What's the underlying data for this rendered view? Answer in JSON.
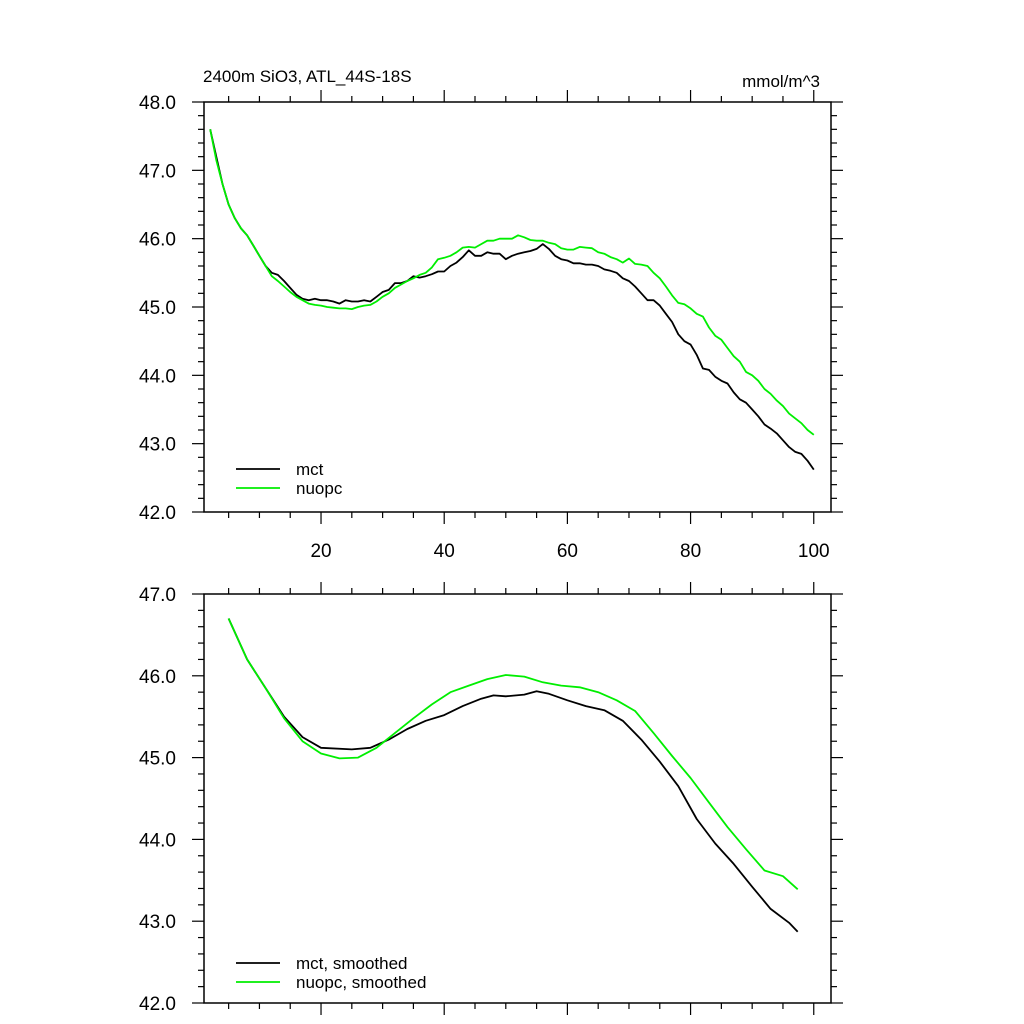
{
  "colors": {
    "mct": "#000000",
    "nuopc": "#00ee00"
  },
  "chart_data": [
    {
      "type": "line",
      "title_left": "2400m SiO3, ATL_44S-18S",
      "title_right": "mmol/m^3",
      "xlim": [
        1,
        102.8
      ],
      "ylim": [
        42.0,
        48.0
      ],
      "xticks": [
        20,
        40,
        60,
        80,
        100
      ],
      "xtick_labels": [
        "20",
        "40",
        "60",
        "80",
        "100"
      ],
      "yticks": [
        42,
        43,
        44,
        45,
        46,
        47,
        48
      ],
      "ytick_labels": [
        "42.0",
        "43.0",
        "44.0",
        "45.0",
        "46.0",
        "47.0",
        "48.0"
      ],
      "legend": "bottom-left",
      "x": [
        2,
        3,
        4,
        5,
        6,
        7,
        8,
        9,
        10,
        11,
        12,
        13,
        14,
        15,
        16,
        17,
        18,
        19,
        20,
        21,
        22,
        23,
        24,
        25,
        26,
        27,
        28,
        29,
        30,
        31,
        32,
        33,
        34,
        35,
        36,
        37,
        38,
        39,
        40,
        41,
        42,
        43,
        44,
        45,
        46,
        47,
        48,
        49,
        50,
        51,
        52,
        53,
        54,
        55,
        56,
        57,
        58,
        59,
        60,
        61,
        62,
        63,
        64,
        65,
        66,
        67,
        68,
        69,
        70,
        71,
        72,
        73,
        74,
        75,
        76,
        77,
        78,
        79,
        80,
        81,
        82,
        83,
        84,
        85,
        86,
        87,
        88,
        89,
        90,
        91,
        92,
        93,
        94,
        95,
        96,
        97,
        98,
        99,
        100
      ],
      "series": [
        {
          "name": "mct",
          "values": [
            47.6,
            47.2,
            46.8,
            46.5,
            46.3,
            46.15,
            46.05,
            45.9,
            45.75,
            45.6,
            45.5,
            45.47,
            45.38,
            45.28,
            45.18,
            45.12,
            45.1,
            45.12,
            45.1,
            45.1,
            45.08,
            45.05,
            45.1,
            45.08,
            45.08,
            45.1,
            45.08,
            45.15,
            45.22,
            45.25,
            45.35,
            45.35,
            45.38,
            45.45,
            45.43,
            45.45,
            45.48,
            45.52,
            45.52,
            45.6,
            45.65,
            45.73,
            45.83,
            45.75,
            45.75,
            45.8,
            45.78,
            45.78,
            45.7,
            45.75,
            45.78,
            45.8,
            45.82,
            45.85,
            45.92,
            45.85,
            45.75,
            45.7,
            45.68,
            45.64,
            45.64,
            45.62,
            45.62,
            45.6,
            45.55,
            45.53,
            45.5,
            45.42,
            45.38,
            45.3,
            45.2,
            45.1,
            45.1,
            45.02,
            44.9,
            44.78,
            44.6,
            44.5,
            44.45,
            44.3,
            44.1,
            44.08,
            43.98,
            43.92,
            43.88,
            43.75,
            43.65,
            43.6,
            43.5,
            43.4,
            43.28,
            43.22,
            43.15,
            43.05,
            42.95,
            42.88,
            42.85,
            42.75,
            42.62
          ]
        },
        {
          "name": "nuopc",
          "values": [
            47.6,
            47.15,
            46.8,
            46.5,
            46.3,
            46.15,
            46.05,
            45.9,
            45.75,
            45.6,
            45.45,
            45.38,
            45.3,
            45.22,
            45.15,
            45.1,
            45.05,
            45.03,
            45.02,
            45.0,
            44.99,
            44.98,
            44.98,
            44.97,
            45.0,
            45.02,
            45.03,
            45.08,
            45.15,
            45.2,
            45.28,
            45.33,
            45.38,
            45.42,
            45.47,
            45.5,
            45.58,
            45.7,
            45.72,
            45.75,
            45.8,
            45.87,
            45.88,
            45.87,
            45.92,
            45.97,
            45.97,
            46.0,
            46.0,
            46.0,
            46.05,
            46.02,
            45.98,
            45.97,
            45.97,
            45.94,
            45.92,
            45.86,
            45.84,
            45.84,
            45.88,
            45.87,
            45.86,
            45.8,
            45.78,
            45.73,
            45.7,
            45.65,
            45.71,
            45.63,
            45.62,
            45.6,
            45.5,
            45.42,
            45.3,
            45.17,
            45.06,
            45.04,
            44.98,
            44.9,
            44.86,
            44.7,
            44.58,
            44.52,
            44.4,
            44.28,
            44.2,
            44.05,
            44.0,
            43.92,
            43.8,
            43.73,
            43.63,
            43.55,
            43.44,
            43.37,
            43.3,
            43.2,
            43.13
          ]
        }
      ]
    },
    {
      "type": "line",
      "xlim": [
        1,
        102.8
      ],
      "ylim": [
        42.0,
        47.0
      ],
      "xticks": [
        20,
        40,
        60,
        80,
        100
      ],
      "yticks": [
        42,
        43,
        44,
        45,
        46,
        47
      ],
      "ytick_labels": [
        "42.0",
        "43.0",
        "44.0",
        "45.0",
        "46.0",
        "47.0"
      ],
      "legend": "bottom-left",
      "series": [
        {
          "name": "mct, smoothed",
          "x": [
            5,
            8,
            11,
            14,
            17,
            20,
            25,
            28,
            31,
            34,
            37,
            40,
            43,
            46,
            48,
            50,
            53,
            55,
            57,
            60,
            63,
            66,
            69,
            72,
            75,
            78,
            81,
            84,
            87,
            90,
            93,
            96,
            97.4
          ],
          "values": [
            46.7,
            46.2,
            45.85,
            45.5,
            45.25,
            45.12,
            45.1,
            45.12,
            45.22,
            45.35,
            45.45,
            45.52,
            45.63,
            45.72,
            45.76,
            45.75,
            45.77,
            45.81,
            45.78,
            45.7,
            45.63,
            45.58,
            45.45,
            45.22,
            44.95,
            44.65,
            44.25,
            43.95,
            43.7,
            43.42,
            43.15,
            42.98,
            42.87
          ]
        },
        {
          "name": "nuopc, smoothed",
          "x": [
            5,
            8,
            11,
            14,
            17,
            20,
            23,
            26,
            29,
            32,
            35,
            38,
            41,
            44,
            47,
            50,
            53,
            56,
            59,
            62,
            65,
            68,
            71,
            74,
            77,
            80,
            83,
            86,
            89,
            92,
            95,
            97.4
          ],
          "values": [
            46.7,
            46.2,
            45.85,
            45.48,
            45.2,
            45.05,
            44.99,
            45.0,
            45.12,
            45.3,
            45.48,
            45.65,
            45.8,
            45.88,
            45.96,
            46.01,
            45.99,
            45.92,
            45.88,
            45.86,
            45.8,
            45.7,
            45.57,
            45.3,
            45.02,
            44.75,
            44.45,
            44.15,
            43.88,
            43.62,
            43.55,
            43.39
          ]
        }
      ]
    }
  ]
}
